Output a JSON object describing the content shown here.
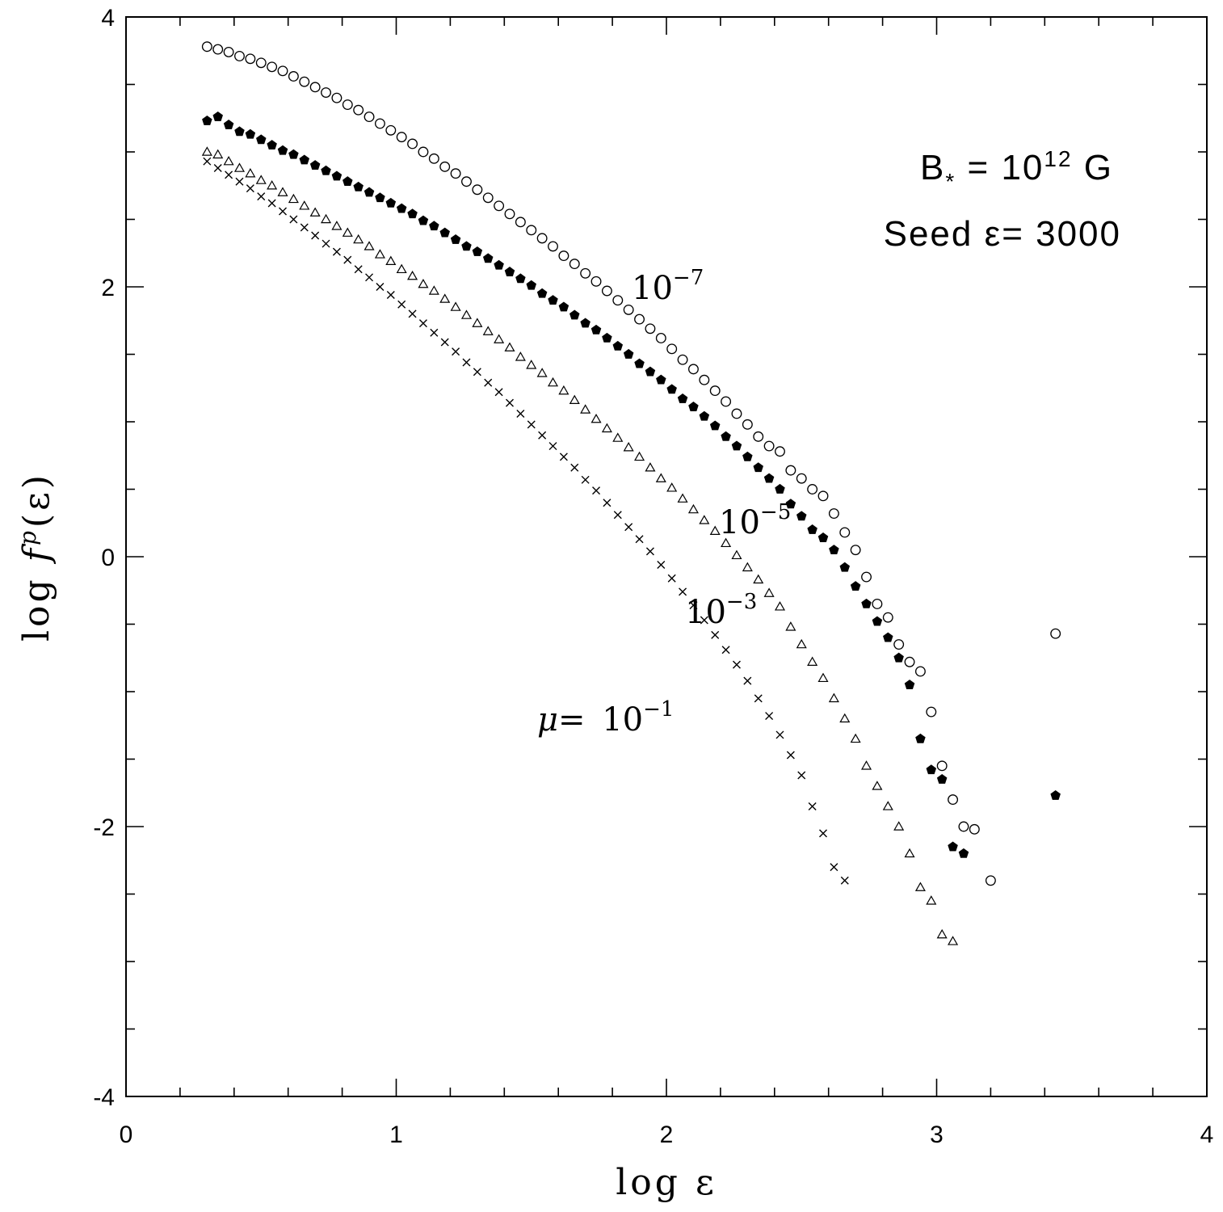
{
  "chart_data": {
    "type": "scatter",
    "title": "",
    "xlabel": "log ε",
    "ylabel": "log fP(ε)",
    "ylabel_parts": {
      "prefix": "log ",
      "func": "f",
      "sup": "p",
      "arg": "(ε)"
    },
    "xlim": [
      0,
      4
    ],
    "ylim": [
      -4,
      4
    ],
    "xticks": [
      0,
      1,
      2,
      3,
      4
    ],
    "xtick_labels": [
      "0",
      "1",
      "2",
      "3",
      "4"
    ],
    "yticks": [
      -4,
      -2,
      0,
      2,
      4
    ],
    "ytick_labels": [
      "-4",
      "-2",
      "0",
      "2",
      "4"
    ],
    "grid": false,
    "info_text": {
      "field": {
        "base": "B",
        "sub": "*",
        "mid": " = 10",
        "sup": "12",
        "end": " G"
      },
      "seed": "Seed ε= 3000"
    },
    "series": [
      {
        "name": "10^-7",
        "label": {
          "base": "10",
          "sup": "−7"
        },
        "marker": "open-circle",
        "x": [
          0.3,
          0.34,
          0.38,
          0.42,
          0.46,
          0.5,
          0.54,
          0.58,
          0.62,
          0.66,
          0.7,
          0.74,
          0.78,
          0.82,
          0.86,
          0.9,
          0.94,
          0.98,
          1.02,
          1.06,
          1.1,
          1.14,
          1.18,
          1.22,
          1.26,
          1.3,
          1.34,
          1.38,
          1.42,
          1.46,
          1.5,
          1.54,
          1.58,
          1.62,
          1.66,
          1.7,
          1.74,
          1.78,
          1.82,
          1.86,
          1.9,
          1.94,
          1.98,
          2.02,
          2.06,
          2.1,
          2.14,
          2.18,
          2.22,
          2.26,
          2.3,
          2.34,
          2.38,
          2.42,
          2.46,
          2.5,
          2.54,
          2.58,
          2.62,
          2.66,
          2.7,
          2.74,
          2.78,
          2.82,
          2.86,
          2.9,
          2.94,
          2.98,
          3.02,
          3.06,
          3.1,
          3.14,
          3.2,
          3.44
        ],
        "y": [
          3.78,
          3.76,
          3.74,
          3.71,
          3.69,
          3.66,
          3.63,
          3.6,
          3.56,
          3.52,
          3.48,
          3.44,
          3.4,
          3.35,
          3.31,
          3.26,
          3.21,
          3.16,
          3.11,
          3.06,
          3.0,
          2.95,
          2.89,
          2.84,
          2.78,
          2.72,
          2.66,
          2.6,
          2.54,
          2.48,
          2.42,
          2.36,
          2.3,
          2.23,
          2.17,
          2.1,
          2.04,
          1.97,
          1.9,
          1.83,
          1.76,
          1.69,
          1.62,
          1.54,
          1.46,
          1.39,
          1.31,
          1.23,
          1.15,
          1.06,
          0.98,
          0.89,
          0.82,
          0.78,
          0.64,
          0.58,
          0.5,
          0.45,
          0.32,
          0.18,
          0.05,
          -0.15,
          -0.35,
          -0.45,
          -0.65,
          -0.78,
          -0.85,
          -1.15,
          -1.55,
          -1.8,
          -2.0,
          -2.02,
          -2.4,
          -0.57
        ]
      },
      {
        "name": "10^-5",
        "label": {
          "base": "10",
          "sup": "−5"
        },
        "marker": "filled-pentagon",
        "x": [
          0.3,
          0.34,
          0.38,
          0.42,
          0.46,
          0.5,
          0.54,
          0.58,
          0.62,
          0.66,
          0.7,
          0.74,
          0.78,
          0.82,
          0.86,
          0.9,
          0.94,
          0.98,
          1.02,
          1.06,
          1.1,
          1.14,
          1.18,
          1.22,
          1.26,
          1.3,
          1.34,
          1.38,
          1.42,
          1.46,
          1.5,
          1.54,
          1.58,
          1.62,
          1.66,
          1.7,
          1.74,
          1.78,
          1.82,
          1.86,
          1.9,
          1.94,
          1.98,
          2.02,
          2.06,
          2.1,
          2.14,
          2.18,
          2.22,
          2.26,
          2.3,
          2.34,
          2.38,
          2.42,
          2.46,
          2.5,
          2.54,
          2.58,
          2.62,
          2.66,
          2.7,
          2.74,
          2.78,
          2.82,
          2.86,
          2.9,
          2.94,
          2.98,
          3.02,
          3.06,
          3.1,
          3.44
        ],
        "y": [
          3.23,
          3.26,
          3.2,
          3.15,
          3.13,
          3.09,
          3.05,
          3.01,
          2.98,
          2.94,
          2.9,
          2.86,
          2.82,
          2.78,
          2.74,
          2.7,
          2.66,
          2.62,
          2.58,
          2.54,
          2.49,
          2.45,
          2.4,
          2.35,
          2.3,
          2.26,
          2.21,
          2.16,
          2.11,
          2.06,
          2.01,
          1.95,
          1.9,
          1.85,
          1.79,
          1.73,
          1.68,
          1.62,
          1.56,
          1.5,
          1.43,
          1.37,
          1.31,
          1.24,
          1.17,
          1.11,
          1.04,
          0.97,
          0.89,
          0.82,
          0.74,
          0.66,
          0.58,
          0.5,
          0.39,
          0.3,
          0.2,
          0.14,
          0.05,
          -0.08,
          -0.22,
          -0.35,
          -0.48,
          -0.6,
          -0.75,
          -0.95,
          -1.35,
          -1.58,
          -1.65,
          -2.15,
          -2.2,
          -1.77
        ]
      },
      {
        "name": "10^-3",
        "label": {
          "base": "10",
          "sup": "−3"
        },
        "marker": "open-triangle",
        "x": [
          0.3,
          0.34,
          0.38,
          0.42,
          0.46,
          0.5,
          0.54,
          0.58,
          0.62,
          0.66,
          0.7,
          0.74,
          0.78,
          0.82,
          0.86,
          0.9,
          0.94,
          0.98,
          1.02,
          1.06,
          1.1,
          1.14,
          1.18,
          1.22,
          1.26,
          1.3,
          1.34,
          1.38,
          1.42,
          1.46,
          1.5,
          1.54,
          1.58,
          1.62,
          1.66,
          1.7,
          1.74,
          1.78,
          1.82,
          1.86,
          1.9,
          1.94,
          1.98,
          2.02,
          2.06,
          2.1,
          2.14,
          2.18,
          2.22,
          2.26,
          2.3,
          2.34,
          2.38,
          2.42,
          2.46,
          2.5,
          2.54,
          2.58,
          2.62,
          2.66,
          2.7,
          2.74,
          2.78,
          2.82,
          2.86,
          2.9,
          2.94,
          2.98,
          3.02,
          3.06
        ],
        "y": [
          3.0,
          2.98,
          2.93,
          2.88,
          2.84,
          2.79,
          2.75,
          2.7,
          2.65,
          2.6,
          2.55,
          2.5,
          2.45,
          2.4,
          2.35,
          2.3,
          2.24,
          2.19,
          2.13,
          2.08,
          2.02,
          1.97,
          1.91,
          1.85,
          1.79,
          1.73,
          1.67,
          1.61,
          1.55,
          1.48,
          1.42,
          1.36,
          1.29,
          1.23,
          1.16,
          1.09,
          1.02,
          0.95,
          0.88,
          0.81,
          0.74,
          0.66,
          0.58,
          0.51,
          0.43,
          0.35,
          0.27,
          0.19,
          0.1,
          0.01,
          -0.08,
          -0.17,
          -0.27,
          -0.37,
          -0.52,
          -0.65,
          -0.78,
          -0.9,
          -1.05,
          -1.2,
          -1.35,
          -1.55,
          -1.7,
          -1.85,
          -2.0,
          -2.2,
          -2.45,
          -2.55,
          -2.8,
          -2.85
        ]
      },
      {
        "name": "mu=10^-1",
        "label": {
          "base": "10",
          "sup": "−1",
          "prefix": "μ= "
        },
        "marker": "cross",
        "x": [
          0.3,
          0.34,
          0.38,
          0.42,
          0.46,
          0.5,
          0.54,
          0.58,
          0.62,
          0.66,
          0.7,
          0.74,
          0.78,
          0.82,
          0.86,
          0.9,
          0.94,
          0.98,
          1.02,
          1.06,
          1.1,
          1.14,
          1.18,
          1.22,
          1.26,
          1.3,
          1.34,
          1.38,
          1.42,
          1.46,
          1.5,
          1.54,
          1.58,
          1.62,
          1.66,
          1.7,
          1.74,
          1.78,
          1.82,
          1.86,
          1.9,
          1.94,
          1.98,
          2.02,
          2.06,
          2.1,
          2.14,
          2.18,
          2.22,
          2.26,
          2.3,
          2.34,
          2.38,
          2.42,
          2.46,
          2.5,
          2.54,
          2.58,
          2.62,
          2.66
        ],
        "y": [
          2.93,
          2.88,
          2.83,
          2.78,
          2.73,
          2.67,
          2.62,
          2.56,
          2.5,
          2.44,
          2.38,
          2.32,
          2.26,
          2.2,
          2.13,
          2.07,
          2.0,
          1.94,
          1.87,
          1.8,
          1.73,
          1.66,
          1.59,
          1.52,
          1.44,
          1.37,
          1.29,
          1.22,
          1.14,
          1.06,
          0.98,
          0.9,
          0.82,
          0.74,
          0.66,
          0.57,
          0.49,
          0.4,
          0.31,
          0.22,
          0.13,
          0.04,
          -0.06,
          -0.16,
          -0.26,
          -0.36,
          -0.47,
          -0.58,
          -0.69,
          -0.8,
          -0.92,
          -1.05,
          -1.18,
          -1.32,
          -1.47,
          -1.62,
          -1.85,
          -2.05,
          -2.3,
          -2.4
        ]
      }
    ],
    "annotations": [
      {
        "text": "10^-7",
        "at_x": 1.88,
        "at_y": 1.93
      },
      {
        "text": "10^-5",
        "at_x": 2.2,
        "at_y": 0.22
      },
      {
        "text": "10^-3",
        "at_x": 2.07,
        "at_y": -0.43
      },
      {
        "text": "μ= 10^-1",
        "at_x": 1.53,
        "at_y": -1.25
      }
    ]
  }
}
